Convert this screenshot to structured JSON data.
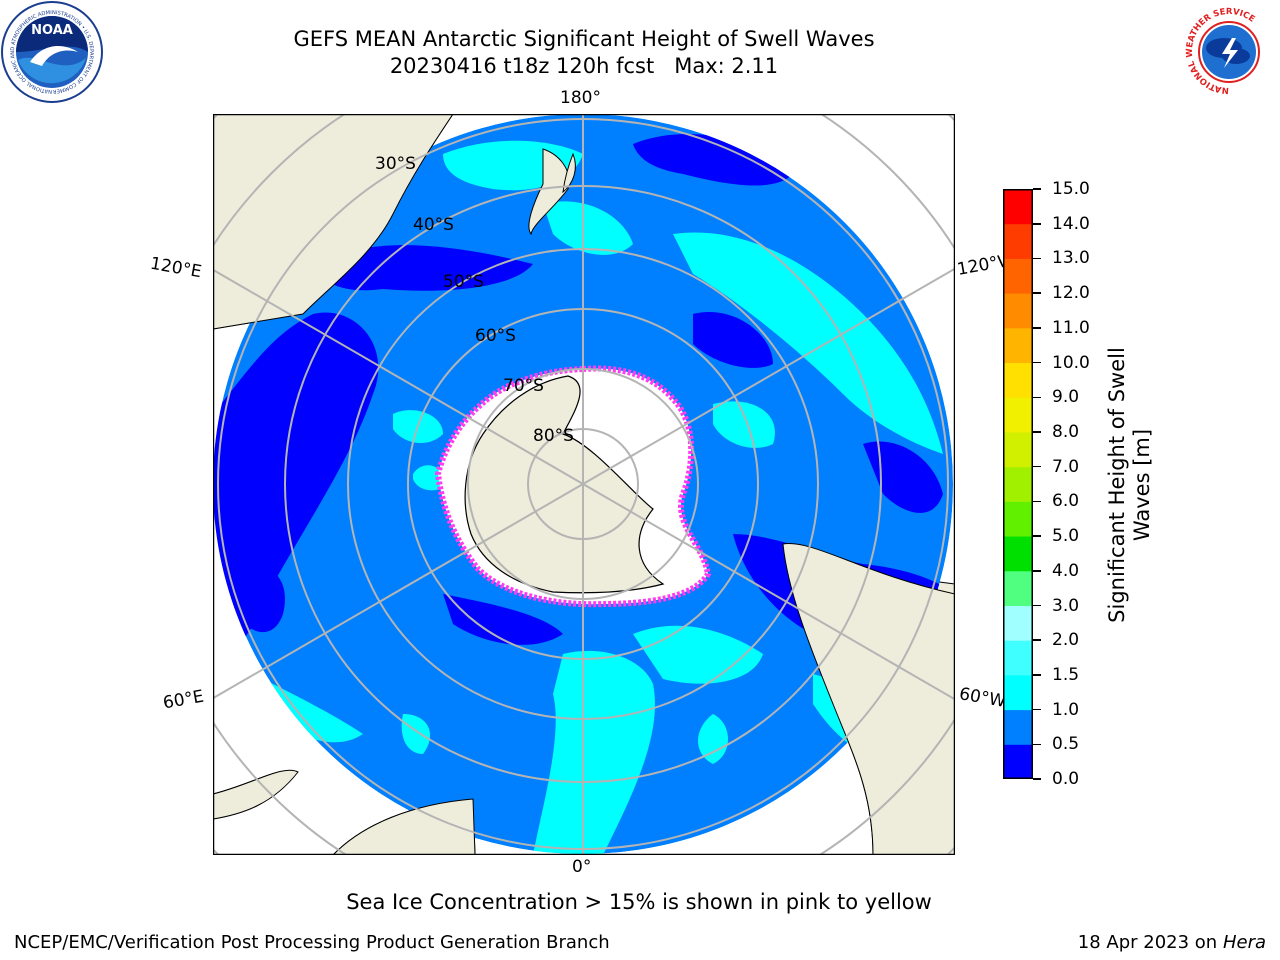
{
  "header": {
    "title_line1": "GEFS MEAN Antarctic Significant Height of Swell Waves",
    "title_line2": "20230416 t18z 120h fcst   Max: 2.11"
  },
  "logos": {
    "left": {
      "icon": "noaa-logo-icon",
      "text": "NOAA",
      "ring_text": "NATIONAL OCEANIC AND ATMOSPHERIC ADMINISTRATION • U.S. DEPARTMENT OF COMMERCE"
    },
    "right": {
      "icon": "nws-logo-icon",
      "ring_text": "NATIONAL WEATHER SERVICE"
    }
  },
  "map": {
    "projection": "south-polar-stereographic",
    "longitude_labels": {
      "top": "180°",
      "bottom": "0°",
      "upper_left": "120°E",
      "lower_left": "60°E",
      "upper_right": "120°W",
      "lower_right": "60°W"
    },
    "latitude_labels": [
      "30°S",
      "40°S",
      "50°S",
      "60°S",
      "70°S",
      "80°S"
    ],
    "colors": {
      "land": "#eeecdb",
      "ice_edge": "#ff3cf0",
      "grid": "#b4b4b4"
    }
  },
  "colorbar": {
    "ticks": [
      "0.0",
      "0.5",
      "1.0",
      "1.5",
      "2.0",
      "3.0",
      "4.0",
      "5.0",
      "6.0",
      "7.0",
      "8.0",
      "9.0",
      "10.0",
      "11.0",
      "12.0",
      "13.0",
      "14.0",
      "15.0"
    ],
    "colors": [
      "#0000ff",
      "#0080ff",
      "#00ffff",
      "#40ffff",
      "#a0ffff",
      "#50ff80",
      "#00e000",
      "#60f000",
      "#a0f000",
      "#d0f000",
      "#f0f000",
      "#ffe000",
      "#ffb400",
      "#ff8c00",
      "#ff6400",
      "#ff3c00",
      "#ff0000"
    ],
    "title_line1": "Significant Height of Swell",
    "title_line2": "Waves [m]"
  },
  "caption": "Sea Ice Concentration > 15% is shown in pink to yellow",
  "footer": {
    "left": "NCEP/EMC/Verification Post Processing Product Generation Branch",
    "date": "18 Apr 2023 on ",
    "host": "Hera"
  }
}
